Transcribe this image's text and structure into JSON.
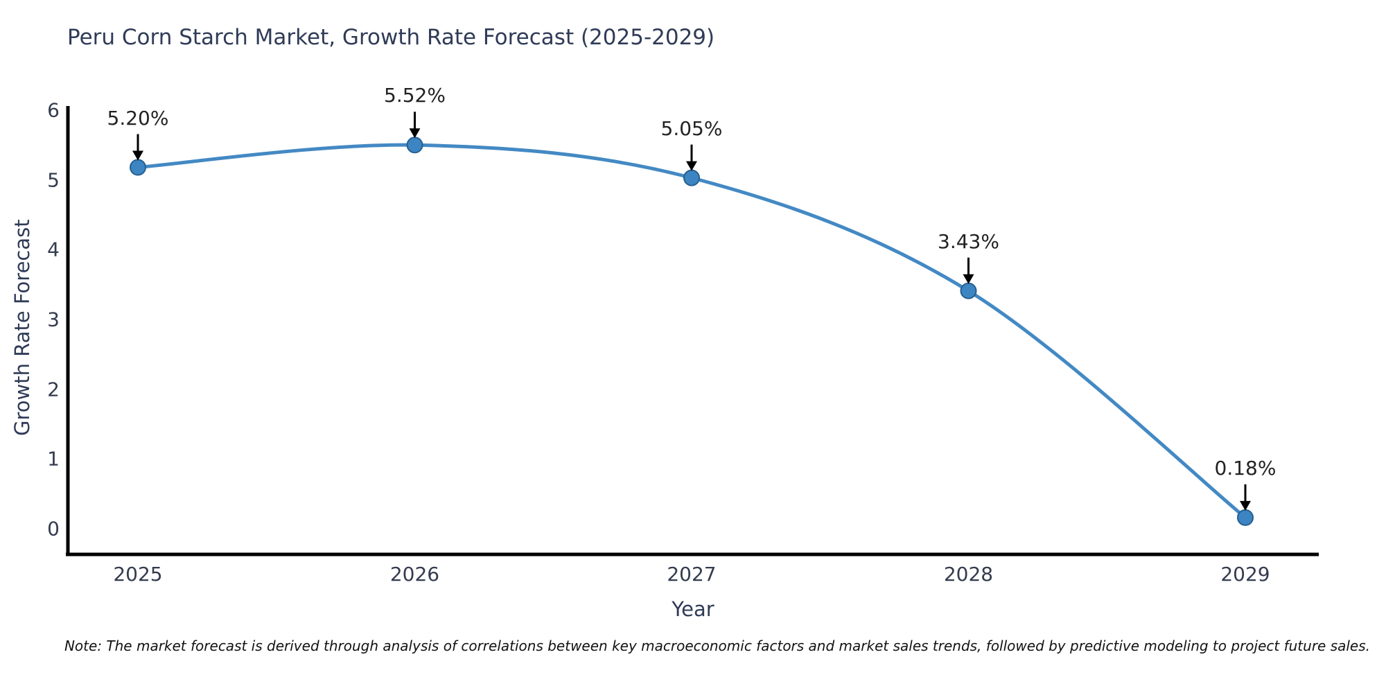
{
  "chart": {
    "title": "Peru Corn Starch Market, Growth Rate Forecast (2025-2029)",
    "note": "Note: The market forecast is derived through analysis of correlations between key macroeconomic factors and market sales trends, followed by predictive modeling to project future sales."
  },
  "chart_data": {
    "type": "line",
    "title": "Peru Corn Starch Market, Growth Rate Forecast (2025-2029)",
    "xlabel": "Year",
    "ylabel": "Growth Rate Forecast",
    "x": [
      2025,
      2026,
      2027,
      2028,
      2029
    ],
    "series": [
      {
        "name": "Growth Rate Forecast",
        "values": [
          5.2,
          5.52,
          5.05,
          3.43,
          0.18
        ]
      }
    ],
    "point_labels": [
      "5.20%",
      "5.52%",
      "5.05%",
      "3.43%",
      "0.18%"
    ],
    "yticks": [
      0,
      1,
      2,
      3,
      4,
      5,
      6
    ],
    "ylim": [
      0,
      6
    ],
    "grid": false,
    "legend": "none",
    "line_color": "#4389c4",
    "marker_color": "#3c85c2",
    "marker_edge_color": "#265f8f",
    "axis_color": "#000000",
    "annotation_arrow_color": "#000000"
  }
}
